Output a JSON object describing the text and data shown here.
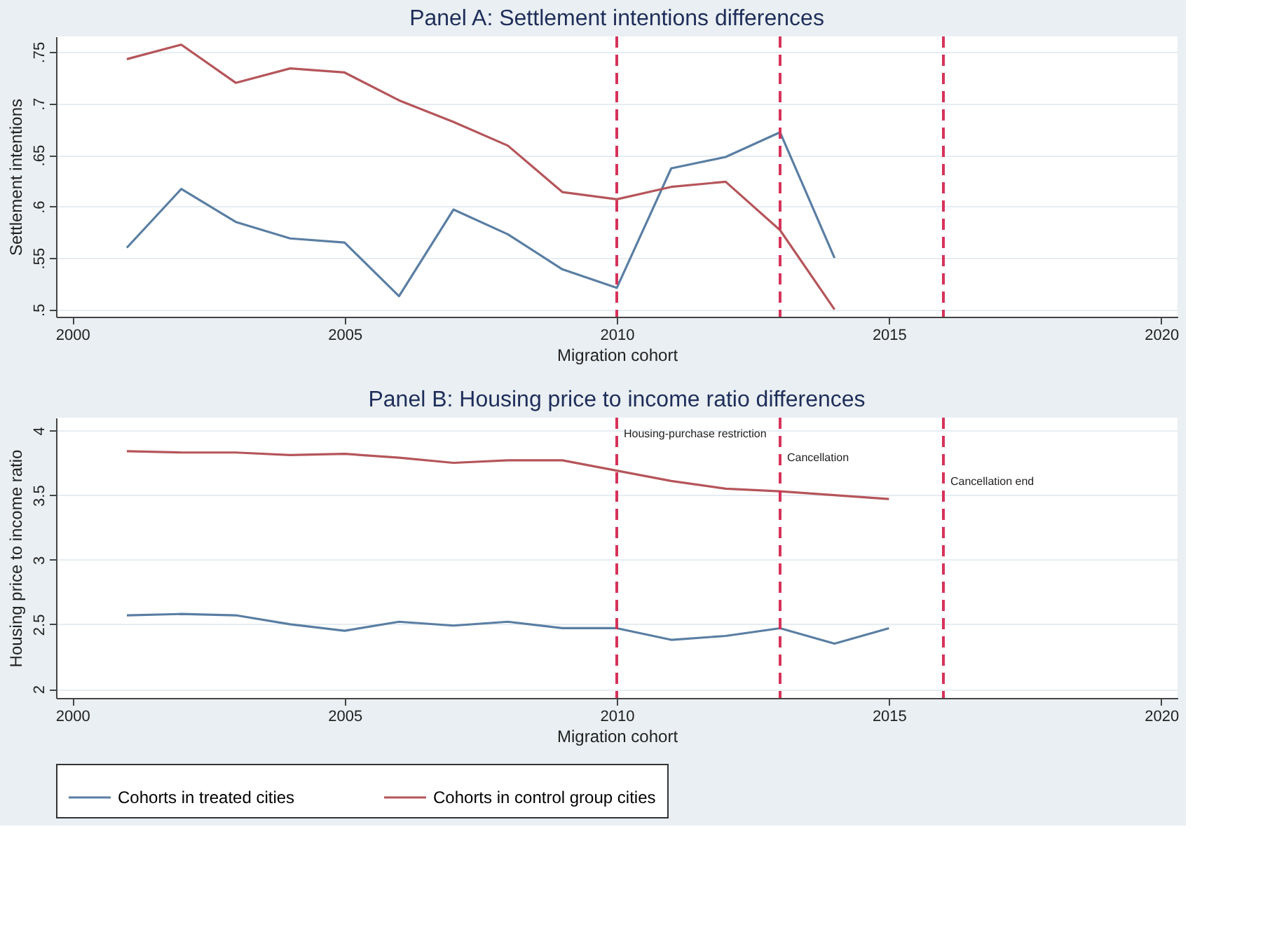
{
  "chart_data": [
    {
      "type": "line",
      "title": "Panel A: Settlement intentions differences",
      "xlabel": "Migration cohort",
      "ylabel": "Settlement intentions",
      "x": [
        2001,
        2002,
        2003,
        2004,
        2005,
        2006,
        2007,
        2008,
        2009,
        2010,
        2011,
        2012,
        2013,
        2014
      ],
      "series": [
        {
          "name": "Cohorts in treated cities",
          "color": "#5a7ea3",
          "values": [
            0.56,
            0.617,
            0.585,
            0.569,
            0.565,
            0.513,
            0.597,
            0.573,
            0.539,
            0.521,
            0.637,
            0.648,
            0.672,
            0.55
          ]
        },
        {
          "name": "Cohorts in control group cities",
          "color": "#b5555a",
          "values": [
            0.743,
            0.757,
            0.72,
            0.734,
            0.73,
            0.703,
            0.682,
            0.659,
            0.614,
            0.607,
            0.619,
            0.624,
            0.577,
            0.5
          ]
        }
      ],
      "xlim": [
        1999.7,
        2020.3
      ],
      "xticks": [
        2000,
        2005,
        2010,
        2015,
        2020
      ],
      "ylim": [
        0.493,
        0.765
      ],
      "yticks": [
        {
          "value": 0.5,
          "label": ".5"
        },
        {
          "value": 0.55,
          "label": ".55"
        },
        {
          "value": 0.6,
          "label": ".6"
        },
        {
          "value": 0.65,
          "label": ".65"
        },
        {
          "value": 0.7,
          "label": ".7"
        },
        {
          "value": 0.75,
          "label": ".75"
        }
      ],
      "ref_lines": [
        {
          "axis": "x",
          "value": 2010,
          "color": "#d6335a",
          "line_style": "dashed"
        },
        {
          "axis": "x",
          "value": 2013,
          "color": "#d6335a",
          "line_style": "dashed"
        },
        {
          "axis": "x",
          "value": 2016,
          "color": "#d6335a",
          "line_style": "dashed"
        }
      ],
      "grid": "y",
      "legend": "bottom"
    },
    {
      "type": "line",
      "title": "Panel B: Housing price to income ratio differences",
      "xlabel": "Migration cohort",
      "ylabel": "Housing price to income ratio",
      "x": [
        2001,
        2002,
        2003,
        2004,
        2005,
        2006,
        2007,
        2008,
        2009,
        2010,
        2011,
        2012,
        2013,
        2014,
        2015
      ],
      "series": [
        {
          "color": "#5a7ea3",
          "values": [
            2.57,
            2.58,
            2.57,
            2.5,
            2.45,
            2.52,
            2.49,
            2.52,
            2.47,
            2.47,
            2.38,
            2.41,
            2.47,
            2.35,
            2.47
          ]
        },
        {
          "color": "#b5555a",
          "values": [
            3.84,
            3.83,
            3.83,
            3.81,
            3.82,
            3.79,
            3.75,
            3.77,
            3.77,
            3.69,
            3.61,
            3.55,
            3.53,
            3.5,
            3.47
          ]
        }
      ],
      "xlim": [
        1999.7,
        2020.3
      ],
      "xticks": [
        2000,
        2005,
        2010,
        2015,
        2020
      ],
      "ylim": [
        1.93,
        4.1
      ],
      "yticks": [
        2,
        2.5,
        3,
        3.5,
        4
      ],
      "ref_lines": [
        {
          "axis": "x",
          "value": 2010,
          "color": "#d6335a",
          "line_style": "dashed",
          "label": "Housing-purchase restriction"
        },
        {
          "axis": "x",
          "value": 2013,
          "color": "#d6335a",
          "line_style": "dashed",
          "label": "Cancellation"
        },
        {
          "axis": "x",
          "value": 2016,
          "color": "#d6335a",
          "line_style": "dashed",
          "label": "Cancellation end"
        }
      ],
      "grid": "y",
      "legend": false
    }
  ]
}
